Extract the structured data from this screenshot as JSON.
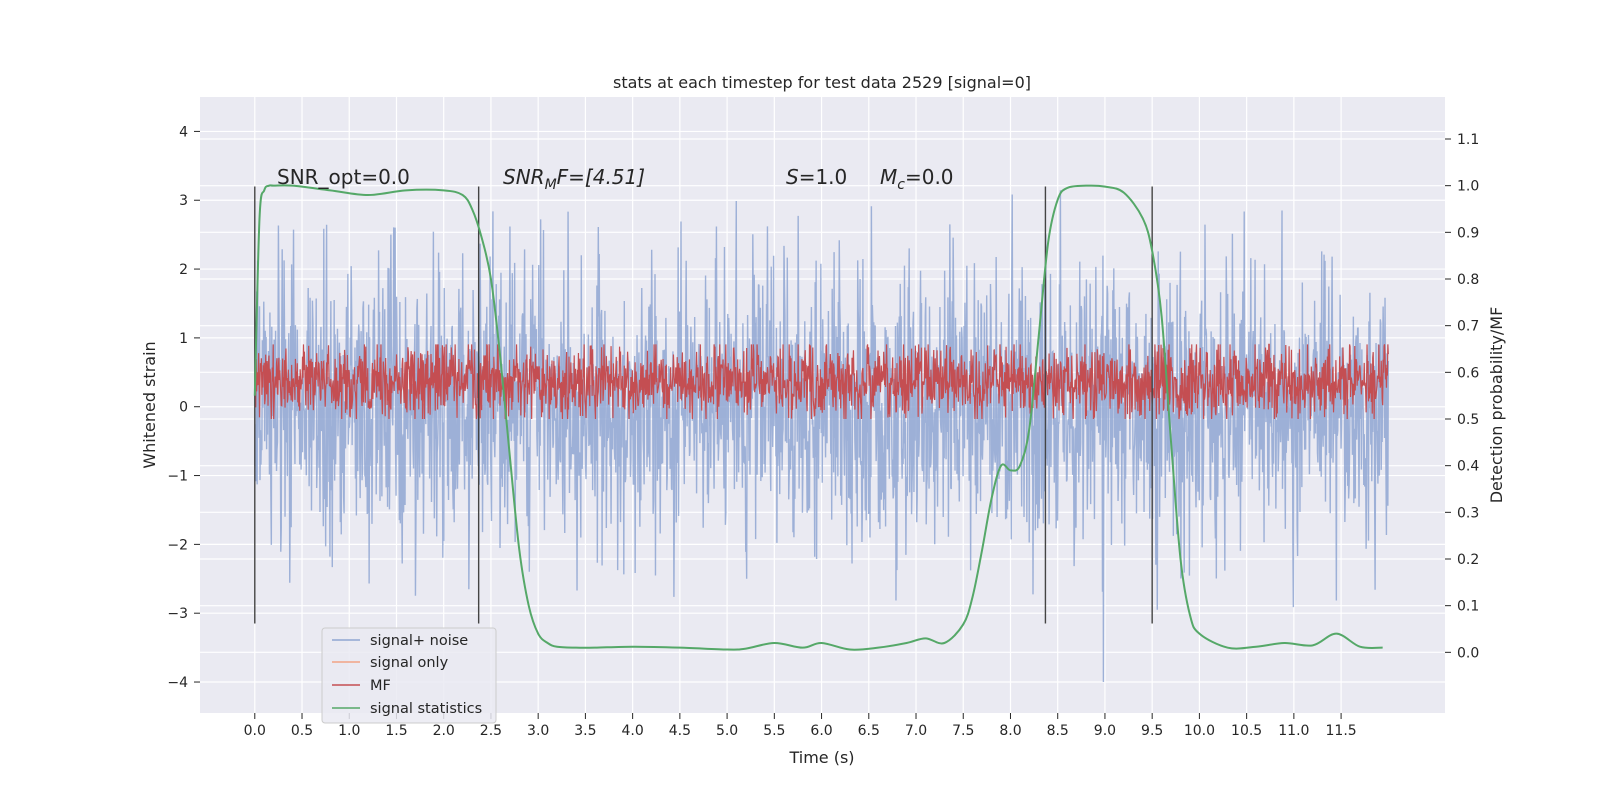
{
  "chart_data": {
    "type": "line",
    "title": "stats at each timestep for test data 2529 [signal=0]",
    "xlabel": "Time (s)",
    "ylabel": "Whitened strain",
    "y2label": "Detection probability/MF",
    "xlim": [
      -0.58,
      12.6
    ],
    "ylim": [
      -4.45,
      4.5
    ],
    "y2lim": [
      -0.13,
      1.19
    ],
    "x_ticks": [
      "0.0",
      "0.5",
      "1.0",
      "1.5",
      "2.0",
      "2.5",
      "3.0",
      "3.5",
      "4.0",
      "4.5",
      "5.0",
      "5.5",
      "6.0",
      "6.5",
      "7.0",
      "7.5",
      "8.0",
      "8.5",
      "9.0",
      "9.5",
      "10.0",
      "10.5",
      "11.0",
      "11.5"
    ],
    "y_ticks": [
      "4",
      "3",
      "2",
      "1",
      "0",
      "−1",
      "−2",
      "−3",
      "−4"
    ],
    "y2_ticks": [
      "1.1",
      "1.0",
      "0.9",
      "0.8",
      "0.7",
      "0.6",
      "0.5",
      "0.4",
      "0.3",
      "0.2",
      "0.1",
      "0.0"
    ],
    "grid": true,
    "legend_position": "lower-left",
    "annotations": [
      {
        "id": "snr-opt",
        "text": "SNR_opt=0.0",
        "x": 0.2,
        "y": 3.3
      },
      {
        "id": "snr-mf-label",
        "text": "SNR",
        "x": 2.62,
        "y": 3.3
      },
      {
        "id": "snr-mf-sub",
        "text": "M",
        "x": 0,
        "y": 0
      },
      {
        "id": "snr-mf-rest",
        "text": "F=[4.51]",
        "x": 0,
        "y": 0
      },
      {
        "id": "s-label",
        "text": "S",
        "x": 5.62,
        "y": 3.3
      },
      {
        "id": "s-rest",
        "text": "=1.0",
        "x": 0,
        "y": 0
      },
      {
        "id": "mc-label",
        "text": "M",
        "x": 6.62,
        "y": 3.3
      },
      {
        "id": "mc-sub",
        "text": "c",
        "x": 0,
        "y": 0
      },
      {
        "id": "mc-rest",
        "text": "=0.0",
        "x": 0,
        "y": 0
      }
    ],
    "vertical_markers": [
      0.0,
      2.37,
      8.37,
      9.5
    ],
    "series": [
      {
        "name": "signal+ noise",
        "color": "#8fa6d2",
        "axis": "left",
        "kind": "noise",
        "duration": 12.0,
        "sigma": 1.0,
        "seed": 2529
      },
      {
        "name": "signal only",
        "color": "#f1a385",
        "axis": "left",
        "values": []
      },
      {
        "name": "MF",
        "color": "#c44e52",
        "axis": "right",
        "kind": "mf",
        "duration": 12.0,
        "center": 0.58,
        "spread": 0.04,
        "seed": 4051
      },
      {
        "name": "signal statistics",
        "color": "#55a868",
        "axis": "right",
        "x": [
          0.0,
          0.05,
          0.1,
          0.15,
          0.2,
          0.4,
          0.8,
          1.2,
          1.6,
          2.0,
          2.2,
          2.3,
          2.4,
          2.5,
          2.6,
          2.7,
          2.8,
          2.9,
          3.0,
          3.1,
          3.2,
          3.4,
          3.6,
          4.0,
          4.5,
          5.0,
          5.2,
          5.5,
          5.8,
          6.0,
          6.3,
          6.6,
          6.9,
          7.1,
          7.3,
          7.5,
          7.6,
          7.7,
          7.8,
          7.9,
          8.0,
          8.1,
          8.2,
          8.3,
          8.4,
          8.5,
          8.6,
          8.8,
          9.0,
          9.2,
          9.4,
          9.5,
          9.6,
          9.7,
          9.8,
          9.9,
          10.0,
          10.3,
          10.6,
          10.9,
          11.2,
          11.45,
          11.7,
          11.94
        ],
        "values": [
          0.55,
          0.93,
          0.99,
          1.0,
          1.0,
          1.0,
          0.99,
          0.98,
          0.99,
          0.99,
          0.98,
          0.95,
          0.89,
          0.8,
          0.63,
          0.42,
          0.22,
          0.1,
          0.04,
          0.02,
          0.012,
          0.01,
          0.01,
          0.012,
          0.01,
          0.006,
          0.008,
          0.02,
          0.01,
          0.02,
          0.006,
          0.01,
          0.02,
          0.03,
          0.02,
          0.06,
          0.12,
          0.22,
          0.33,
          0.4,
          0.39,
          0.4,
          0.48,
          0.68,
          0.88,
          0.97,
          0.995,
          1.0,
          0.998,
          0.985,
          0.93,
          0.86,
          0.72,
          0.45,
          0.2,
          0.08,
          0.04,
          0.01,
          0.012,
          0.02,
          0.015,
          0.04,
          0.012,
          0.01
        ]
      }
    ]
  }
}
